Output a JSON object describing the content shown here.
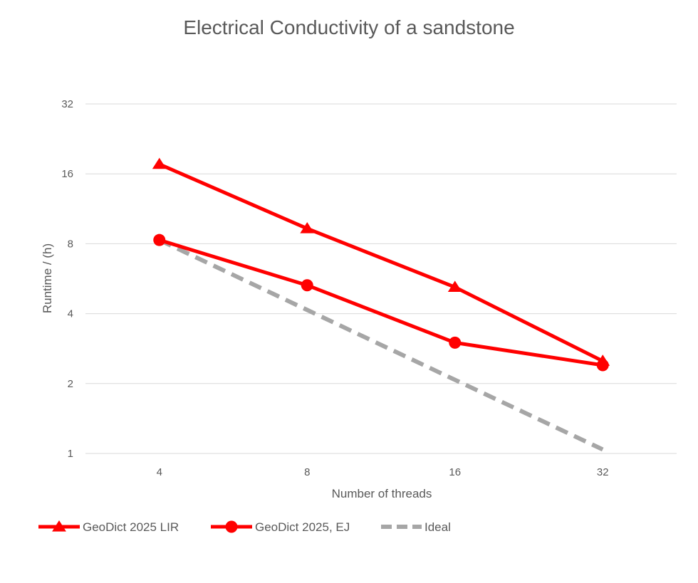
{
  "chart_data": {
    "type": "line",
    "title": "Electrical Conductivity of a sandstone",
    "xlabel": "Number of threads",
    "ylabel": "Runtime / (h)",
    "x_scale": "log2",
    "y_scale": "log2",
    "categories": [
      "4",
      "8",
      "16",
      "32"
    ],
    "x": [
      4,
      8,
      16,
      32
    ],
    "yticks": [
      "1",
      "2",
      "4",
      "8",
      "16",
      "32"
    ],
    "ytick_values": [
      1,
      2,
      4,
      8,
      16,
      32
    ],
    "ylim": [
      1,
      32
    ],
    "grid": true,
    "legend_position": "bottom",
    "series": [
      {
        "name": "GeoDict 2025 LIR",
        "marker": "triangle",
        "dash": "solid",
        "color": "#ff0000",
        "values": [
          17.6,
          9.3,
          5.2,
          2.5
        ]
      },
      {
        "name": "GeoDict 2025, EJ",
        "marker": "circle",
        "dash": "solid",
        "color": "#ff0000",
        "values": [
          8.3,
          5.3,
          3.0,
          2.4
        ]
      },
      {
        "name": "Ideal",
        "marker": "none",
        "dash": "dashed",
        "color": "#a6a6a6",
        "values": [
          8.3,
          4.15,
          2.075,
          1.04
        ]
      }
    ]
  }
}
